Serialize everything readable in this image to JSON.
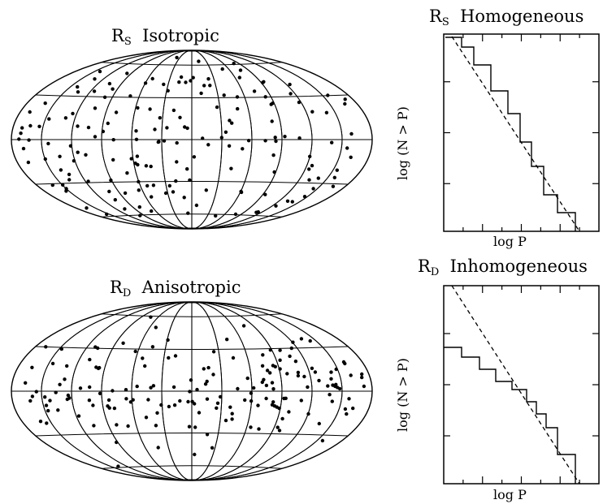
{
  "figure": {
    "panels": [
      {
        "title_main": "R",
        "title_sub": "S",
        "title_rest": "Isotropic"
      },
      {
        "title_main": "R",
        "title_sub": "S",
        "title_rest": "Homogeneous",
        "xlabel": "log P",
        "ylabel": "log (N > P)"
      },
      {
        "title_main": "R",
        "title_sub": "D",
        "title_rest": "Anisotropic"
      },
      {
        "title_main": "R",
        "title_sub": "D",
        "title_rest": "Inhomogeneous",
        "xlabel": "log P",
        "ylabel": "log (N > P)"
      }
    ]
  }
}
